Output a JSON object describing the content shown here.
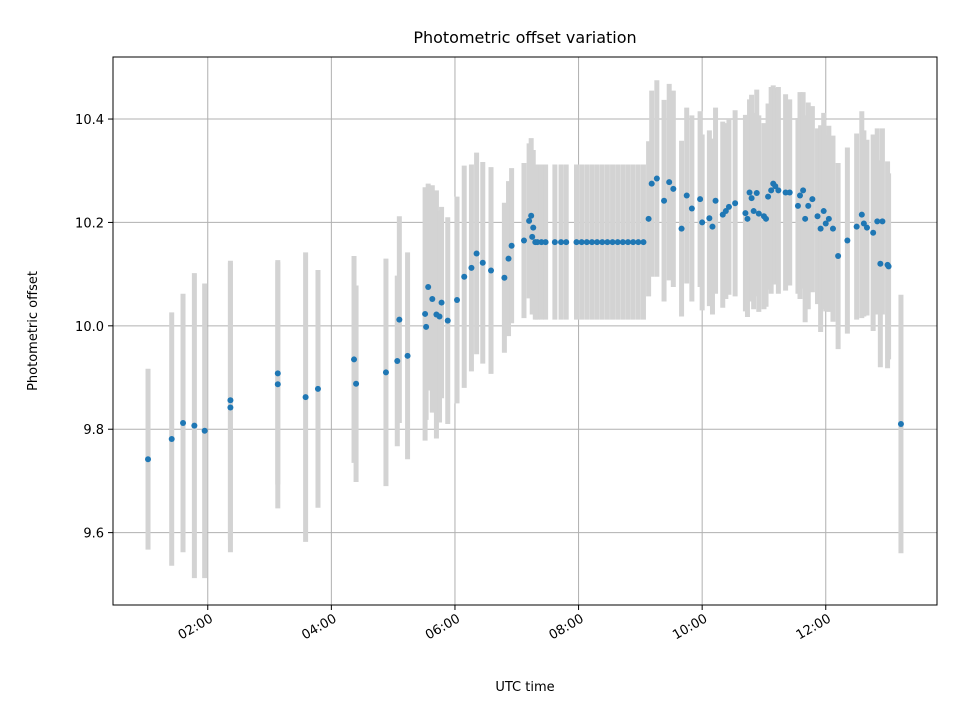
{
  "chart_data": {
    "type": "scatter",
    "title": "Photometric offset variation",
    "xlabel": "UTC time",
    "ylabel": "Photometric offset",
    "grid": true,
    "x_unit": "hour",
    "xlim": [
      "00:28",
      "13:48"
    ],
    "ylim": [
      9.46,
      10.52
    ],
    "x_ticks": [
      "02:00",
      "04:00",
      "06:00",
      "08:00",
      "10:00",
      "12:00"
    ],
    "y_ticks": [
      9.6,
      9.8,
      10.0,
      10.2,
      10.4
    ],
    "colors": {
      "points": "#1f77b4",
      "errorbars": "#d3d3d3",
      "grid": "#b0b0b0"
    },
    "series": [
      {
        "x": [
          "01:02",
          "01:25",
          "01:36",
          "01:47",
          "01:57",
          "02:22",
          "02:22",
          "03:08",
          "03:08",
          "03:35",
          "03:47",
          "04:22",
          "04:24",
          "04:53",
          "05:04",
          "05:06",
          "05:14",
          "05:31",
          "05:32",
          "05:34",
          "05:38",
          "05:42",
          "05:45",
          "05:47",
          "05:53",
          "06:02",
          "06:09",
          "06:16",
          "06:21",
          "06:27",
          "06:35",
          "06:48",
          "06:52",
          "06:55",
          "07:07",
          "07:12",
          "07:14",
          "07:15",
          "07:16",
          "07:18",
          "07:20",
          "07:24",
          "07:28",
          "07:37",
          "07:43",
          "07:48",
          "07:58",
          "08:03",
          "08:08",
          "08:13",
          "08:18",
          "08:23",
          "08:28",
          "08:33",
          "08:38",
          "08:43",
          "08:48",
          "08:53",
          "08:58",
          "09:03",
          "09:08",
          "09:11",
          "09:16",
          "09:23",
          "09:28",
          "09:32",
          "09:40",
          "09:45",
          "09:50",
          "09:58",
          "10:00",
          "10:07",
          "10:10",
          "10:13",
          "10:20",
          "10:23",
          "10:26",
          "10:32",
          "10:42",
          "10:44",
          "10:46",
          "10:48",
          "10:50",
          "10:53",
          "10:55",
          "11:00",
          "11:02",
          "11:04",
          "11:07",
          "11:09",
          "11:11",
          "11:14",
          "11:21",
          "11:25",
          "11:33",
          "11:35",
          "11:38",
          "11:40",
          "11:43",
          "11:47",
          "11:52",
          "11:55",
          "11:58",
          "12:00",
          "12:03",
          "12:07",
          "12:12",
          "12:21",
          "12:30",
          "12:35",
          "12:37",
          "12:40",
          "12:46",
          "12:50",
          "12:53",
          "12:55",
          "13:00",
          "13:01",
          "13:13"
        ],
        "y": [
          9.742,
          9.781,
          9.812,
          9.807,
          9.797,
          9.856,
          9.842,
          9.908,
          9.887,
          9.862,
          9.878,
          9.935,
          9.888,
          9.91,
          9.932,
          10.012,
          9.942,
          10.023,
          9.998,
          10.075,
          10.052,
          10.022,
          10.018,
          10.045,
          10.01,
          10.05,
          10.095,
          10.112,
          10.14,
          10.122,
          10.107,
          10.093,
          10.13,
          10.155,
          10.165,
          10.203,
          10.213,
          10.172,
          10.19,
          10.162,
          10.162,
          10.162,
          10.162,
          10.162,
          10.162,
          10.162,
          10.162,
          10.162,
          10.162,
          10.162,
          10.162,
          10.162,
          10.162,
          10.162,
          10.162,
          10.162,
          10.162,
          10.162,
          10.162,
          10.162,
          10.207,
          10.275,
          10.285,
          10.242,
          10.278,
          10.265,
          10.188,
          10.252,
          10.227,
          10.245,
          10.2,
          10.208,
          10.192,
          10.242,
          10.215,
          10.222,
          10.23,
          10.237,
          10.218,
          10.207,
          10.258,
          10.247,
          10.222,
          10.257,
          10.217,
          10.212,
          10.207,
          10.25,
          10.262,
          10.275,
          10.27,
          10.262,
          10.258,
          10.258,
          10.232,
          10.252,
          10.262,
          10.207,
          10.232,
          10.245,
          10.212,
          10.188,
          10.222,
          10.198,
          10.207,
          10.188,
          10.135,
          10.165,
          10.192,
          10.215,
          10.198,
          10.19,
          10.18,
          10.202,
          10.12,
          10.202,
          10.118,
          10.115,
          9.81
        ],
        "err": [
          0.175,
          0.245,
          0.25,
          0.295,
          0.285,
          0.27,
          0.28,
          0.215,
          0.24,
          0.28,
          0.23,
          0.2,
          0.19,
          0.22,
          0.165,
          0.2,
          0.2,
          0.245,
          0.18,
          0.2,
          0.22,
          0.24,
          0.205,
          0.185,
          0.2,
          0.2,
          0.215,
          0.2,
          0.195,
          0.195,
          0.2,
          0.145,
          0.15,
          0.15,
          0.15,
          0.15,
          0.15,
          0.15,
          0.15,
          0.15,
          0.15,
          0.15,
          0.15,
          0.15,
          0.15,
          0.15,
          0.15,
          0.15,
          0.15,
          0.15,
          0.15,
          0.15,
          0.15,
          0.15,
          0.15,
          0.15,
          0.15,
          0.15,
          0.15,
          0.15,
          0.15,
          0.18,
          0.19,
          0.195,
          0.19,
          0.19,
          0.17,
          0.17,
          0.18,
          0.17,
          0.17,
          0.17,
          0.17,
          0.18,
          0.18,
          0.17,
          0.17,
          0.18,
          0.19,
          0.19,
          0.18,
          0.2,
          0.19,
          0.2,
          0.19,
          0.18,
          0.17,
          0.18,
          0.2,
          0.19,
          0.19,
          0.2,
          0.19,
          0.18,
          0.17,
          0.2,
          0.19,
          0.2,
          0.2,
          0.18,
          0.17,
          0.2,
          0.19,
          0.17,
          0.18,
          0.18,
          0.18,
          0.18,
          0.18,
          0.2,
          0.18,
          0.17,
          0.19,
          0.18,
          0.2,
          0.18,
          0.2,
          0.18,
          0.25
        ]
      }
    ]
  }
}
